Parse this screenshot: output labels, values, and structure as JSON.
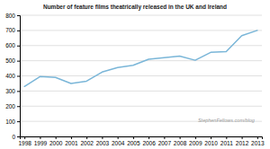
{
  "chart_data": {
    "type": "line",
    "title": "Number of feature films theatrically released in the UK and Ireland",
    "x": [
      1998,
      1999,
      2000,
      2001,
      2002,
      2003,
      2004,
      2005,
      2006,
      2007,
      2008,
      2009,
      2010,
      2011,
      2012,
      2013
    ],
    "values": [
      330,
      395,
      390,
      350,
      365,
      425,
      455,
      470,
      510,
      520,
      530,
      503,
      555,
      560,
      665,
      700
    ],
    "color": "#7ab6d8",
    "xlim": [
      1997.7,
      2013.3
    ],
    "xticks": [
      1998,
      1999,
      2000,
      2001,
      2002,
      2003,
      2004,
      2005,
      2006,
      2007,
      2008,
      2009,
      2010,
      2011,
      2012,
      2013
    ],
    "ylim": [
      0,
      800
    ],
    "yticks": [
      0,
      100,
      200,
      300,
      400,
      500,
      600,
      700,
      800
    ],
    "grid": true,
    "annotations": [
      "StephenFellows.com/blog"
    ]
  }
}
